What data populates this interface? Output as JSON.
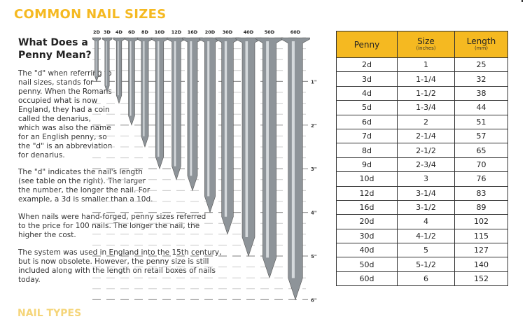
{
  "title": "COMMON NAIL SIZES",
  "subtitle": "What Does a Penny Mean?",
  "paragraphs": [
    "The \"d\" when referring to nail sizes, stands for penny. When the Romans occupied what is now England, they had a coin called the denarius, which was also the name for an English penny, so the \"d\" is an abbreviation for denarius.",
    "The \"d\" indicates the nail's length (see table on the right). The larger the number, the longer the nail. For example, a 3d is smaller than a 10d.",
    "When nails were hand-forged, penny sizes referred to the price for 100 nails. The longer the nail, the higher the cost.",
    "The system was used in England into the 15th century, but is now obsolete. However, the penny size is still included along with the length on retail boxes of nails today."
  ],
  "illustration": {
    "nail_labels": [
      "2D",
      "3D",
      "4D",
      "6D",
      "8D",
      "10D",
      "12D",
      "16D",
      "20D",
      "30D",
      "40D",
      "50D",
      "60D"
    ],
    "nail_lengths_in": [
      1,
      1.25,
      1.5,
      2,
      2.5,
      3,
      3.25,
      3.5,
      4,
      4.5,
      5,
      5.5,
      6
    ],
    "ruler_labels": [
      "1\"",
      "2\"",
      "3\"",
      "4\"",
      "5\"",
      "6\""
    ],
    "nail_color": "#8e9499"
  },
  "table": {
    "headers": [
      {
        "label": "Penny",
        "unit": ""
      },
      {
        "label": "Size",
        "unit": "(inches)"
      },
      {
        "label": "Length",
        "unit": "(mm)"
      }
    ],
    "header_color": "#f5b921",
    "rows": [
      [
        "2d",
        "1",
        "25"
      ],
      [
        "3d",
        "1-1/4",
        "32"
      ],
      [
        "4d",
        "1-1/2",
        "38"
      ],
      [
        "5d",
        "1-3/4",
        "44"
      ],
      [
        "6d",
        "2",
        "51"
      ],
      [
        "7d",
        "2-1/4",
        "57"
      ],
      [
        "8d",
        "2-1/2",
        "65"
      ],
      [
        "9d",
        "2-3/4",
        "70"
      ],
      [
        "10d",
        "3",
        "76"
      ],
      [
        "12d",
        "3-1/4",
        "83"
      ],
      [
        "16d",
        "3-1/2",
        "89"
      ],
      [
        "20d",
        "4",
        "102"
      ],
      [
        "30d",
        "4-1/2",
        "115"
      ],
      [
        "40d",
        "5",
        "127"
      ],
      [
        "50d",
        "5-1/2",
        "140"
      ],
      [
        "60d",
        "6",
        "152"
      ]
    ]
  },
  "bottom_heading_partial": "NAIL TYPES"
}
